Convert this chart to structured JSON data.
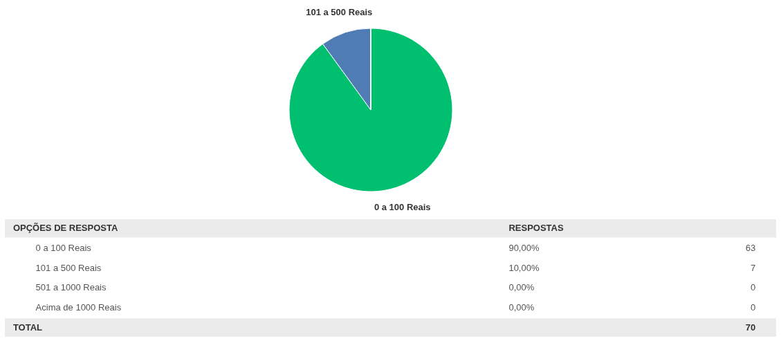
{
  "chart_data": {
    "type": "pie",
    "categories": [
      "0 a 100 Reais",
      "101 a 500 Reais",
      "501 a 1000 Reais",
      "Acima de 1000 Reais"
    ],
    "values": [
      90,
      10,
      0,
      0
    ],
    "colors": [
      "#00bf6f",
      "#507cb6",
      null,
      null
    ],
    "legend": false,
    "annotations": [
      "OPÇÕES DE RESPOSTA",
      "RESPOSTAS",
      "TOTAL",
      "70",
      "90,00%",
      "63",
      "10,00%",
      "7",
      "0,00%",
      "0",
      "0,00%",
      "0"
    ]
  }
}
